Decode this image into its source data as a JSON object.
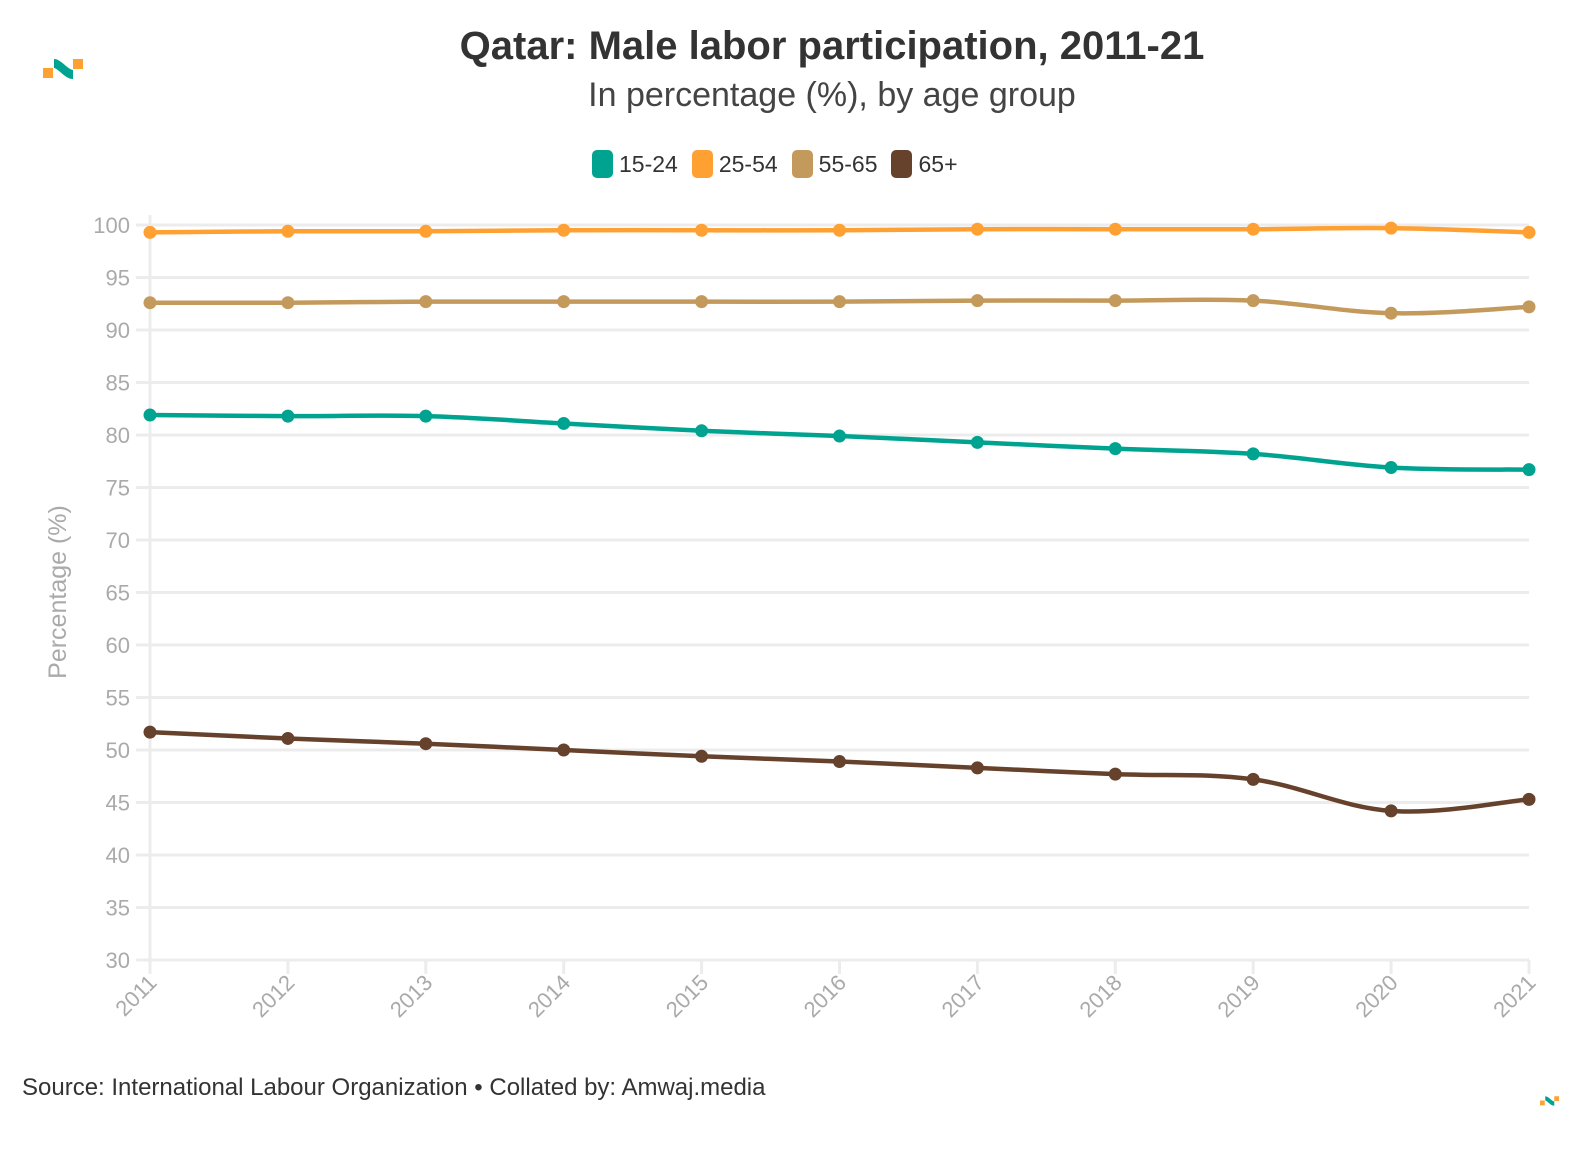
{
  "header": {
    "title": "Qatar: Male labor participation, 2011-21",
    "subtitle": "In percentage (%), by age group"
  },
  "footer": {
    "source": "Source: International Labour Organization • Collated by: Amwaj.media"
  },
  "brand": {
    "logo_icon": "amwaj-logo-icon",
    "colors": {
      "teal": "#00a390",
      "orange": "#ffa033"
    }
  },
  "chart_data": {
    "type": "line",
    "title": "Qatar: Male labor participation, 2011-21",
    "subtitle": "In percentage (%), by age group",
    "xlabel": "",
    "ylabel": "Percentage (%)",
    "x": [
      "2011",
      "2012",
      "2013",
      "2014",
      "2015",
      "2016",
      "2017",
      "2018",
      "2019",
      "2020",
      "2021"
    ],
    "ylim": [
      30,
      100
    ],
    "yticks": [
      30,
      35,
      40,
      45,
      50,
      55,
      60,
      65,
      70,
      75,
      80,
      85,
      90,
      95,
      100
    ],
    "grid": true,
    "legend_position": "top-center",
    "series": [
      {
        "name": "15-24",
        "color": "#00a390",
        "values": [
          81.9,
          81.8,
          81.8,
          81.1,
          80.4,
          79.9,
          79.3,
          78.7,
          78.2,
          76.9,
          76.7
        ]
      },
      {
        "name": "25-54",
        "color": "#ffa033",
        "values": [
          99.3,
          99.4,
          99.4,
          99.5,
          99.5,
          99.5,
          99.6,
          99.6,
          99.6,
          99.7,
          99.3
        ]
      },
      {
        "name": "55-65",
        "color": "#c39a5c",
        "values": [
          92.6,
          92.6,
          92.7,
          92.7,
          92.7,
          92.7,
          92.8,
          92.8,
          92.8,
          91.6,
          92.2
        ]
      },
      {
        "name": "65+",
        "color": "#66412b",
        "values": [
          51.7,
          51.1,
          50.6,
          50.0,
          49.4,
          48.9,
          48.3,
          47.7,
          47.2,
          44.2,
          45.3
        ]
      }
    ]
  }
}
